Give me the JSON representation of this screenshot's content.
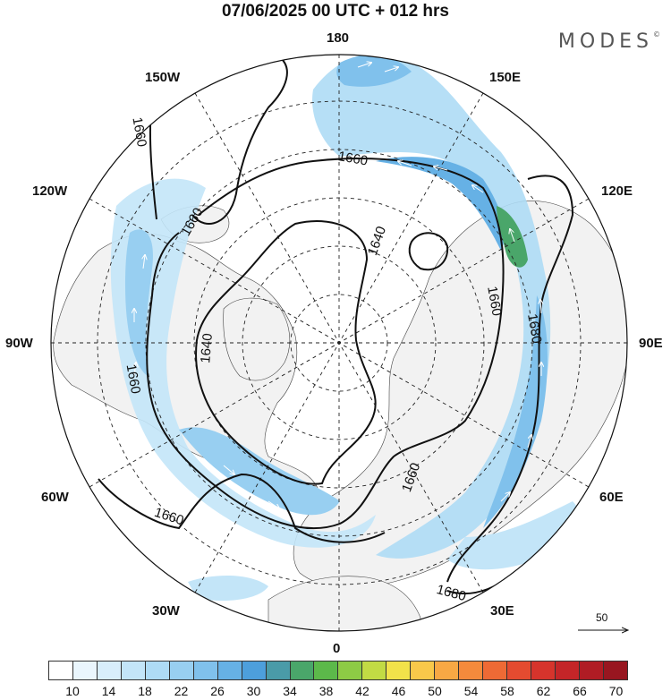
{
  "title": "07/06/2025  00 UTC  + 012 hrs",
  "brand": "MODES",
  "brand_mark": "©",
  "longitude_labels": {
    "top": "180",
    "bottom": "0",
    "left": "90W",
    "right": "90E",
    "upper_left_1": "150W",
    "upper_left_2": "120W",
    "lower_left_1": "60W",
    "lower_left_2": "30W",
    "upper_right_1": "150E",
    "upper_right_2": "120E",
    "lower_right_1": "60E",
    "lower_right_2": "30E"
  },
  "contour_labels": [
    "1660",
    "1660",
    "1660",
    "1640",
    "1660",
    "1640",
    "1660",
    "1640",
    "1660",
    "1680",
    "1660",
    "1660",
    "1680"
  ],
  "vector_scale_label": "50",
  "colorbar": {
    "ticks": [
      "10",
      "14",
      "18",
      "22",
      "26",
      "30",
      "34",
      "38",
      "42",
      "46",
      "50",
      "54",
      "58",
      "62",
      "66",
      "70"
    ],
    "colors": [
      "#ffffff",
      "#eaf6fd",
      "#d8eefb",
      "#c3e5f8",
      "#aedbf5",
      "#98cff1",
      "#80c1ec",
      "#66b1e5",
      "#4d9fdc",
      "#4a9ba8",
      "#4aa66a",
      "#5cb94a",
      "#8dcb45",
      "#c2db44",
      "#f2e24a",
      "#f9c84a",
      "#f8a844",
      "#f48a3c",
      "#ee6a35",
      "#e44b30",
      "#d6342c",
      "#c42528",
      "#b01c24",
      "#981620"
    ]
  }
}
